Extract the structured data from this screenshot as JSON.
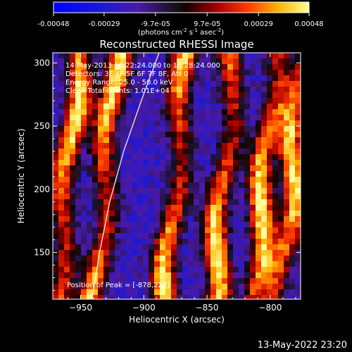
{
  "colorbar": {
    "tick_labels": [
      "-0.00048",
      "-0.00029",
      "-9.7e-05",
      "9.7e-05",
      "0.00029",
      "0.00048"
    ],
    "tick_values": [
      -0.00048,
      -0.00029,
      -9.7e-05,
      9.7e-05,
      0.00029,
      0.00048
    ],
    "range": [
      -0.00048,
      0.00048
    ],
    "unit_label_parts": {
      "pre": "(photons cm",
      "exp1": "-2",
      "mid1": " s",
      "exp2": "-1",
      "mid2": " asec",
      "exp3": "-2",
      "post": ")"
    }
  },
  "chart_data": {
    "type": "heatmap",
    "title": "Reconstructed RHESSI Image",
    "xlabel": "Heliocentric X (arcsec)",
    "ylabel": "Heliocentric Y (arcsec)",
    "xlim": [
      -972,
      -776
    ],
    "ylim": [
      113,
      308
    ],
    "x_ticks": [
      -950,
      -900,
      -850,
      -800
    ],
    "y_ticks": [
      150,
      200,
      250,
      300
    ],
    "x_tick_labels": [
      "−950",
      "−900",
      "−850",
      "−800"
    ],
    "y_tick_labels": [
      "150",
      "200",
      "250",
      "300"
    ],
    "annotations": [
      "14-May-2013 16:22:24.000 to 16:28:24.000",
      "Detectors: 3F 4F 5F 6F 7F 8F, Att 0",
      "Energy Range: 25.0 - 50.0 keV",
      "Clean    Total counts: 1.01E+04"
    ],
    "peak_label": "Position of Peak = [-878,222]",
    "peak": [
      -878,
      222
    ],
    "limb_curve": [
      [
        -941,
        113
      ],
      [
        -935,
        150
      ],
      [
        -927,
        190
      ],
      [
        -916,
        230
      ],
      [
        -902,
        270
      ],
      [
        -888,
        308
      ]
    ],
    "stripe_centers": [
      -962,
      -932,
      -876,
      -838,
      -806,
      -785
    ]
  },
  "timestamp": "13-May-2022 23:20"
}
